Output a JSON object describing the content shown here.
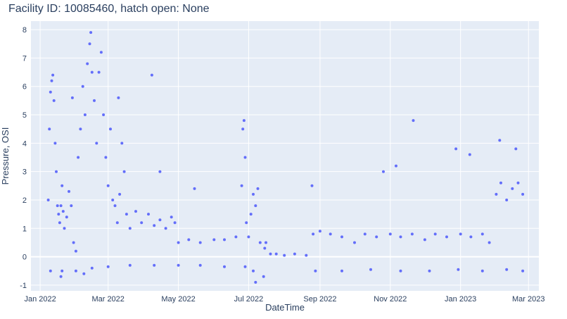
{
  "chart_data": {
    "type": "scatter",
    "title": "Facility ID: 10085460, hatch open: None",
    "xlabel": "DateTime",
    "ylabel": "Pressure, OSI",
    "xlim": [
      "2021-12-24",
      "2023-03-10"
    ],
    "ylim": [
      -1.2,
      8.3
    ],
    "x_ticks": [
      {
        "date": "2022-01-01",
        "label": "Jan 2022"
      },
      {
        "date": "2022-03-01",
        "label": "Mar 2022"
      },
      {
        "date": "2022-05-01",
        "label": "May 2022"
      },
      {
        "date": "2022-07-01",
        "label": "Jul 2022"
      },
      {
        "date": "2022-09-01",
        "label": "Sep 2022"
      },
      {
        "date": "2022-11-01",
        "label": "Nov 2022"
      },
      {
        "date": "2023-01-01",
        "label": "Jan 2023"
      },
      {
        "date": "2023-03-01",
        "label": "Mar 2023"
      }
    ],
    "y_ticks": [
      -1,
      0,
      1,
      2,
      3,
      4,
      5,
      6,
      7,
      8
    ],
    "grid": true,
    "marker_color": "#636efa",
    "plot_bgcolor": "#e5ecf6",
    "series": [
      {
        "points": [
          [
            "2022-01-08",
            2.0
          ],
          [
            "2022-01-09",
            4.5
          ],
          [
            "2022-01-10",
            5.8
          ],
          [
            "2022-01-11",
            6.2
          ],
          [
            "2022-01-12",
            6.4
          ],
          [
            "2022-01-13",
            5.5
          ],
          [
            "2022-01-14",
            4.0
          ],
          [
            "2022-01-15",
            3.0
          ],
          [
            "2022-01-16",
            1.8
          ],
          [
            "2022-01-17",
            1.5
          ],
          [
            "2022-01-18",
            1.2
          ],
          [
            "2022-01-19",
            1.8
          ],
          [
            "2022-01-20",
            2.5
          ],
          [
            "2022-01-21",
            1.6
          ],
          [
            "2022-01-22",
            1.0
          ],
          [
            "2022-01-24",
            1.4
          ],
          [
            "2022-01-26",
            2.3
          ],
          [
            "2022-01-28",
            1.8
          ],
          [
            "2022-01-30",
            0.5
          ],
          [
            "2022-02-01",
            0.2
          ],
          [
            "2022-02-03",
            3.5
          ],
          [
            "2022-02-05",
            4.5
          ],
          [
            "2022-02-07",
            6.0
          ],
          [
            "2022-02-09",
            5.0
          ],
          [
            "2022-02-11",
            6.8
          ],
          [
            "2022-02-13",
            7.5
          ],
          [
            "2022-02-14",
            7.9
          ],
          [
            "2022-02-15",
            6.5
          ],
          [
            "2022-02-17",
            5.5
          ],
          [
            "2022-02-19",
            4.0
          ],
          [
            "2022-02-21",
            6.5
          ],
          [
            "2022-02-23",
            7.2
          ],
          [
            "2022-02-25",
            5.0
          ],
          [
            "2022-02-27",
            3.5
          ],
          [
            "2022-03-01",
            2.5
          ],
          [
            "2022-03-03",
            4.5
          ],
          [
            "2022-03-05",
            2.0
          ],
          [
            "2022-03-07",
            1.8
          ],
          [
            "2022-03-09",
            1.2
          ],
          [
            "2022-03-11",
            2.2
          ],
          [
            "2022-03-13",
            4.0
          ],
          [
            "2022-03-15",
            3.0
          ],
          [
            "2022-03-17",
            1.5
          ],
          [
            "2022-03-20",
            1.0
          ],
          [
            "2022-03-25",
            1.6
          ],
          [
            "2022-03-30",
            1.2
          ],
          [
            "2022-04-05",
            1.5
          ],
          [
            "2022-04-10",
            1.1
          ],
          [
            "2022-04-15",
            1.3
          ],
          [
            "2022-04-20",
            1.0
          ],
          [
            "2022-04-25",
            1.4
          ],
          [
            "2022-04-28",
            1.2
          ],
          [
            "2022-05-01",
            0.5
          ],
          [
            "2022-05-10",
            0.6
          ],
          [
            "2022-05-20",
            0.5
          ],
          [
            "2022-06-01",
            0.6
          ],
          [
            "2022-06-10",
            0.6
          ],
          [
            "2022-06-20",
            0.7
          ],
          [
            "2022-06-25",
            2.5
          ],
          [
            "2022-06-26",
            4.5
          ],
          [
            "2022-06-27",
            4.8
          ],
          [
            "2022-06-28",
            3.5
          ],
          [
            "2022-06-29",
            1.2
          ],
          [
            "2022-07-01",
            0.7
          ],
          [
            "2022-07-03",
            1.5
          ],
          [
            "2022-07-05",
            2.2
          ],
          [
            "2022-07-07",
            1.8
          ],
          [
            "2022-07-09",
            2.4
          ],
          [
            "2022-07-11",
            0.5
          ],
          [
            "2022-07-15",
            0.3
          ],
          [
            "2022-07-20",
            0.1
          ],
          [
            "2022-07-25",
            0.1
          ],
          [
            "2022-08-01",
            0.05
          ],
          [
            "2022-08-10",
            0.1
          ],
          [
            "2022-08-20",
            0.05
          ],
          [
            "2022-08-26",
            0.8
          ],
          [
            "2022-09-01",
            0.9
          ],
          [
            "2022-09-10",
            0.8
          ],
          [
            "2022-09-20",
            0.7
          ],
          [
            "2022-10-01",
            0.5
          ],
          [
            "2022-10-10",
            0.8
          ],
          [
            "2022-10-20",
            0.7
          ],
          [
            "2022-11-01",
            0.8
          ],
          [
            "2022-11-10",
            0.7
          ],
          [
            "2022-11-20",
            0.8
          ],
          [
            "2022-12-01",
            0.6
          ],
          [
            "2022-12-10",
            0.8
          ],
          [
            "2022-12-20",
            0.7
          ],
          [
            "2023-01-01",
            0.8
          ],
          [
            "2023-01-10",
            0.7
          ],
          [
            "2023-01-20",
            0.8
          ],
          [
            "2023-01-26",
            0.5
          ],
          [
            "2023-02-01",
            2.2
          ],
          [
            "2023-02-05",
            2.6
          ],
          [
            "2023-02-10",
            2.0
          ],
          [
            "2023-02-15",
            2.4
          ],
          [
            "2023-02-20",
            2.6
          ],
          [
            "2023-02-24",
            2.2
          ],
          [
            "2022-01-10",
            -0.5
          ],
          [
            "2022-01-20",
            -0.5
          ],
          [
            "2022-02-01",
            -0.5
          ],
          [
            "2022-02-15",
            -0.4
          ],
          [
            "2022-03-01",
            -0.35
          ],
          [
            "2022-03-20",
            -0.3
          ],
          [
            "2022-04-10",
            -0.3
          ],
          [
            "2022-05-01",
            -0.3
          ],
          [
            "2022-05-20",
            -0.3
          ],
          [
            "2022-06-10",
            -0.35
          ],
          [
            "2022-06-28",
            -0.35
          ],
          [
            "2022-07-05",
            -0.5
          ],
          [
            "2022-08-28",
            -0.5
          ],
          [
            "2022-09-20",
            -0.5
          ],
          [
            "2022-10-15",
            -0.45
          ],
          [
            "2022-11-10",
            -0.5
          ],
          [
            "2022-12-05",
            -0.5
          ],
          [
            "2022-12-30",
            -0.45
          ],
          [
            "2023-01-20",
            -0.5
          ],
          [
            "2023-02-10",
            -0.45
          ],
          [
            "2023-02-24",
            -0.5
          ],
          [
            "2022-04-08",
            6.4
          ],
          [
            "2022-03-10",
            5.6
          ],
          [
            "2022-04-15",
            3.0
          ],
          [
            "2022-11-21",
            4.8
          ],
          [
            "2022-12-28",
            3.8
          ],
          [
            "2023-01-09",
            3.6
          ],
          [
            "2022-10-26",
            3.0
          ],
          [
            "2022-11-06",
            3.2
          ],
          [
            "2023-02-04",
            4.1
          ],
          [
            "2023-02-18",
            3.8
          ],
          [
            "2022-08-25",
            2.5
          ],
          [
            "2022-05-15",
            2.4
          ],
          [
            "2022-07-16",
            0.5
          ],
          [
            "2022-07-14",
            -0.7
          ],
          [
            "2022-07-07",
            -0.9
          ],
          [
            "2022-01-29",
            5.6
          ],
          [
            "2022-02-08",
            -0.6
          ],
          [
            "2022-01-19",
            -0.7
          ]
        ]
      }
    ]
  }
}
